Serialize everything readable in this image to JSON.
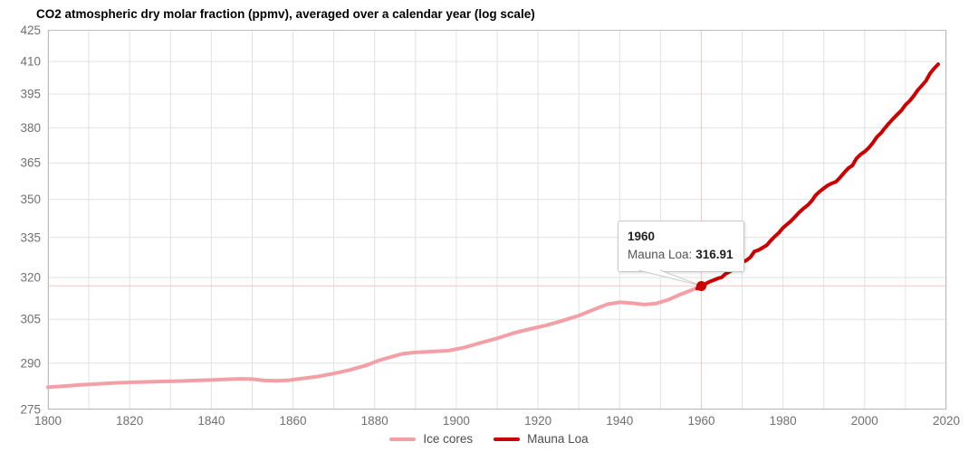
{
  "title": "CO2 atmospheric dry molar fraction (ppmv), averaged over a calendar year (log scale)",
  "legend": {
    "items": [
      {
        "label": "Ice cores",
        "color": "#f2a0a6"
      },
      {
        "label": "Mauna Loa",
        "color": "#cc0000"
      }
    ]
  },
  "tooltip": {
    "title": "1960",
    "series_label": "Mauna Loa:",
    "value": "316.91"
  },
  "style": {
    "background": "#ffffff",
    "title_color": "#000000",
    "grid": "#e2e2e2",
    "border": "#bdbdbd",
    "axis_text": "#707070",
    "legend_text": "#4d4d4d",
    "tooltip_text": "#212121",
    "tooltip_muted_text": "#545454",
    "tooltip_border": "#cacaca",
    "crosshair": "#f7c5c5"
  },
  "chart_data": {
    "type": "line",
    "title": "CO2 atmospheric dry molar fraction (ppmv), averaged over a calendar year (log scale)",
    "xlabel": "",
    "ylabel": "",
    "x_axis": {
      "min": 1800,
      "max": 2020,
      "gridline_step": 10,
      "tick_labels": [
        1800,
        1820,
        1840,
        1860,
        1880,
        1900,
        1920,
        1940,
        1960,
        1980,
        2000,
        2020
      ]
    },
    "y_axis": {
      "scale": "log",
      "min": 275,
      "max": 425,
      "tick_labels": [
        425,
        410,
        395,
        380,
        365,
        350,
        335,
        320,
        305,
        290,
        275
      ]
    },
    "grid": "on",
    "legend_position": "bottom-center",
    "highlight": {
      "series": "Mauna Loa",
      "x": 1960,
      "y": 316.91
    },
    "series": [
      {
        "name": "Ice cores",
        "color": "#f2a0a6",
        "points": [
          [
            1800,
            282.1
          ],
          [
            1804,
            282.5
          ],
          [
            1808,
            282.9
          ],
          [
            1812,
            283.2
          ],
          [
            1816,
            283.5
          ],
          [
            1820,
            283.7
          ],
          [
            1824,
            283.85
          ],
          [
            1828,
            284.0
          ],
          [
            1832,
            284.1
          ],
          [
            1836,
            284.3
          ],
          [
            1840,
            284.45
          ],
          [
            1844,
            284.7
          ],
          [
            1847,
            284.85
          ],
          [
            1850,
            284.75
          ],
          [
            1853,
            284.3
          ],
          [
            1856,
            284.2
          ],
          [
            1859,
            284.4
          ],
          [
            1862,
            284.9
          ],
          [
            1866,
            285.6
          ],
          [
            1870,
            286.6
          ],
          [
            1874,
            287.8
          ],
          [
            1878,
            289.3
          ],
          [
            1881,
            290.9
          ],
          [
            1884,
            292.1
          ],
          [
            1887,
            293.2
          ],
          [
            1890,
            293.6
          ],
          [
            1894,
            293.9
          ],
          [
            1898,
            294.2
          ],
          [
            1902,
            295.3
          ],
          [
            1906,
            296.9
          ],
          [
            1910,
            298.4
          ],
          [
            1914,
            300.2
          ],
          [
            1918,
            301.6
          ],
          [
            1922,
            302.9
          ],
          [
            1926,
            304.5
          ],
          [
            1930,
            306.3
          ],
          [
            1934,
            308.6
          ],
          [
            1937,
            310.3
          ],
          [
            1940,
            311.0
          ],
          [
            1943,
            310.7
          ],
          [
            1946,
            310.2
          ],
          [
            1949,
            310.6
          ],
          [
            1952,
            312.0
          ],
          [
            1955,
            313.9
          ],
          [
            1958,
            315.6
          ],
          [
            1961,
            317.4
          ]
        ]
      },
      {
        "name": "Mauna Loa",
        "color": "#cc0000",
        "points": [
          [
            1959,
            315.97
          ],
          [
            1960,
            316.91
          ],
          [
            1961,
            317.64
          ],
          [
            1962,
            318.45
          ],
          [
            1963,
            318.99
          ],
          [
            1964,
            319.62
          ],
          [
            1965,
            320.04
          ],
          [
            1966,
            321.37
          ],
          [
            1967,
            322.18
          ],
          [
            1968,
            323.05
          ],
          [
            1969,
            324.62
          ],
          [
            1970,
            325.68
          ],
          [
            1971,
            326.32
          ],
          [
            1972,
            327.46
          ],
          [
            1973,
            329.68
          ],
          [
            1974,
            330.19
          ],
          [
            1975,
            331.12
          ],
          [
            1976,
            332.03
          ],
          [
            1977,
            333.84
          ],
          [
            1978,
            335.41
          ],
          [
            1979,
            336.84
          ],
          [
            1980,
            338.76
          ],
          [
            1981,
            340.12
          ],
          [
            1982,
            341.48
          ],
          [
            1983,
            343.15
          ],
          [
            1984,
            344.87
          ],
          [
            1985,
            346.35
          ],
          [
            1986,
            347.61
          ],
          [
            1987,
            349.31
          ],
          [
            1988,
            351.69
          ],
          [
            1989,
            353.2
          ],
          [
            1990,
            354.45
          ],
          [
            1991,
            355.7
          ],
          [
            1992,
            356.54
          ],
          [
            1993,
            357.21
          ],
          [
            1994,
            358.96
          ],
          [
            1995,
            360.97
          ],
          [
            1996,
            362.74
          ],
          [
            1997,
            363.88
          ],
          [
            1998,
            366.84
          ],
          [
            1999,
            368.54
          ],
          [
            2000,
            369.71
          ],
          [
            2001,
            371.32
          ],
          [
            2002,
            373.45
          ],
          [
            2003,
            375.98
          ],
          [
            2004,
            377.7
          ],
          [
            2005,
            379.98
          ],
          [
            2006,
            382.09
          ],
          [
            2007,
            384.02
          ],
          [
            2008,
            385.83
          ],
          [
            2009,
            387.64
          ],
          [
            2010,
            390.1
          ],
          [
            2011,
            391.85
          ],
          [
            2012,
            394.06
          ],
          [
            2013,
            396.74
          ],
          [
            2014,
            398.81
          ],
          [
            2015,
            401.01
          ],
          [
            2016,
            404.41
          ],
          [
            2017,
            406.76
          ],
          [
            2018,
            408.72
          ]
        ]
      }
    ]
  }
}
